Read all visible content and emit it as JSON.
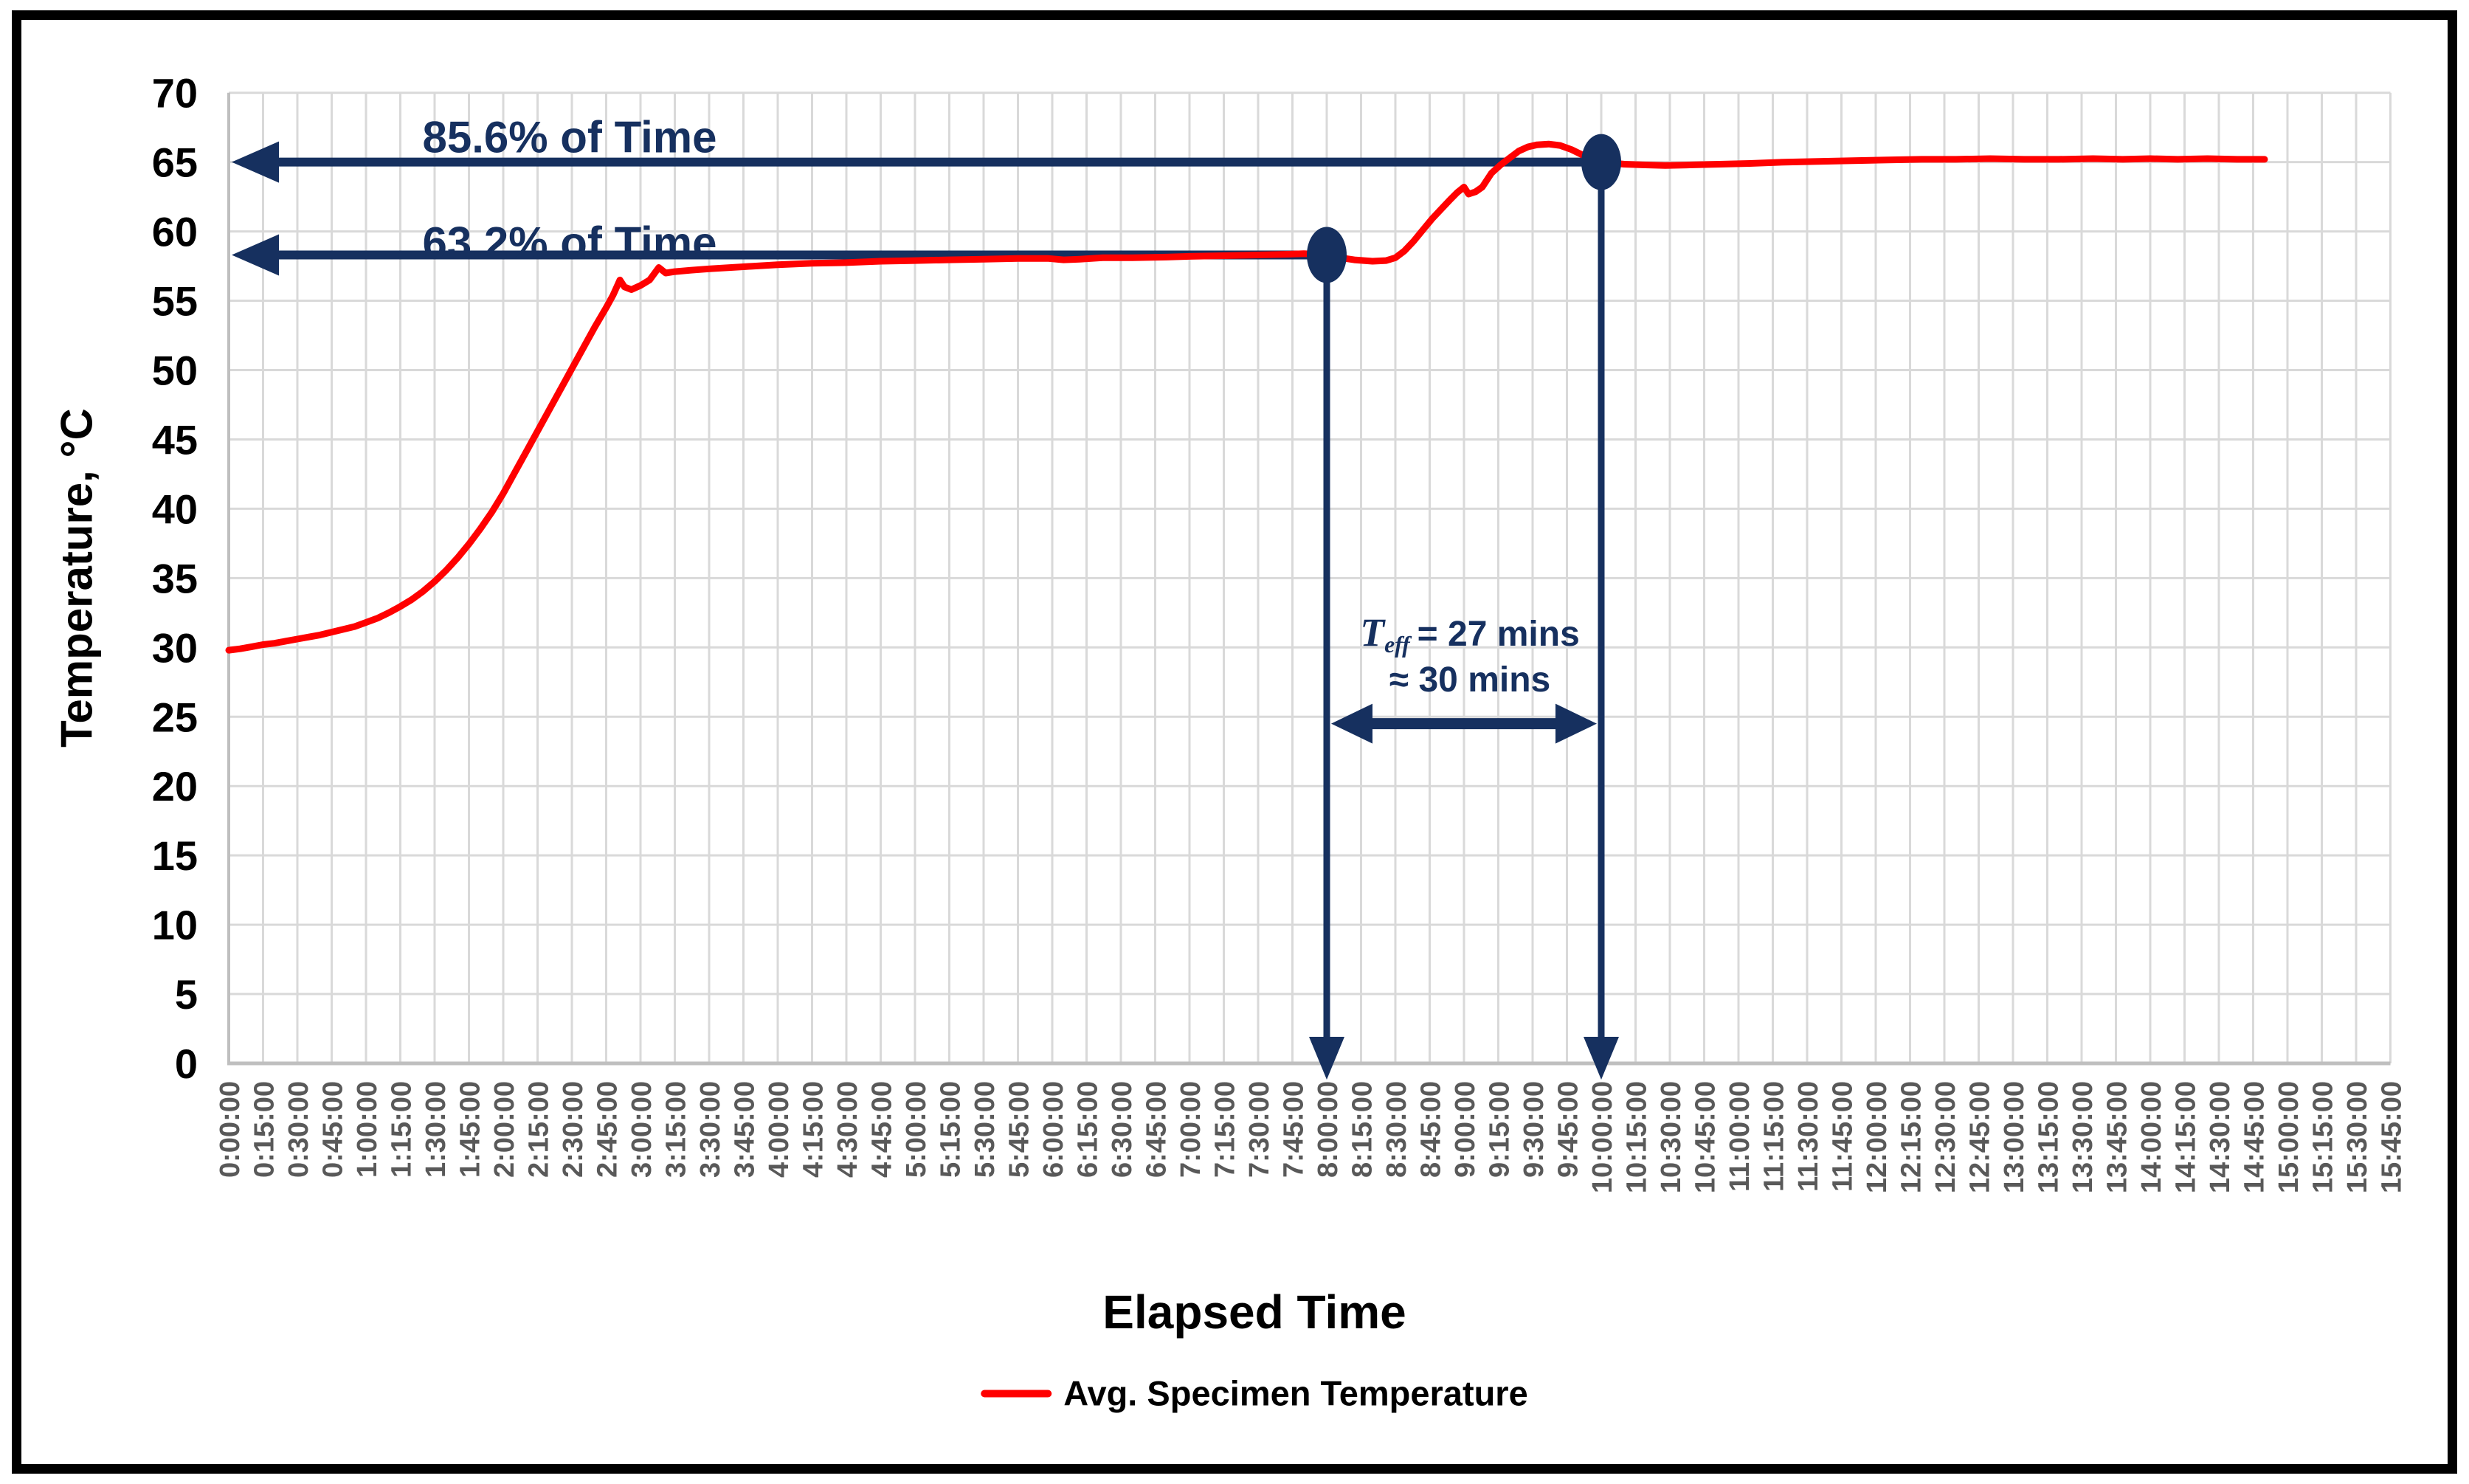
{
  "figure": {
    "background": "#FFFFFF",
    "border_color": "#000000"
  },
  "colors": {
    "series_red": "#FF0000",
    "annotation_navy": "#16305F",
    "gridline": "#D9D9D9",
    "axis_line": "#BFBFBF",
    "x_tick_text": "#595959",
    "y_tick_text": "#000000"
  },
  "chart_data": {
    "type": "line",
    "title": "",
    "xlabel": "Elapsed Time",
    "ylabel": "Temperature, °C",
    "ylim": [
      0,
      70
    ],
    "ytick_step": 5,
    "grid": "on",
    "legend_position": "bottom",
    "ytick_labels": [
      "0",
      "5",
      "10",
      "15",
      "20",
      "25",
      "30",
      "35",
      "40",
      "45",
      "50",
      "55",
      "60",
      "65",
      "70"
    ],
    "xtick_labels": [
      "0:00:00",
      "0:15:00",
      "0:30:00",
      "0:45:00",
      "1:00:00",
      "1:15:00",
      "1:30:00",
      "1:45:00",
      "2:00:00",
      "2:15:00",
      "2:30:00",
      "2:45:00",
      "3:00:00",
      "3:15:00",
      "3:30:00",
      "3:45:00",
      "4:00:00",
      "4:15:00",
      "4:30:00",
      "4:45:00",
      "5:00:00",
      "5:15:00",
      "5:30:00",
      "5:45:00",
      "6:00:00",
      "6:15:00",
      "6:30:00",
      "6:45:00",
      "7:00:00",
      "7:15:00",
      "7:30:00",
      "7:45:00",
      "8:00:00",
      "8:15:00",
      "8:30:00",
      "8:45:00",
      "9:00:00",
      "9:15:00",
      "9:30:00",
      "9:45:00",
      "10:00:00",
      "10:15:00",
      "10:30:00",
      "10:45:00",
      "11:00:00",
      "11:15:00",
      "11:30:00",
      "11:45:00",
      "12:00:00",
      "12:15:00",
      "12:30:00",
      "12:45:00",
      "13:00:00",
      "13:15:00",
      "13:30:00",
      "13:45:00",
      "14:00:00",
      "14:15:00",
      "14:30:00",
      "14:45:00",
      "15:00:00",
      "15:15:00",
      "15:30:00",
      "15:45:00"
    ],
    "minutes_per_tick": 15,
    "series": [
      {
        "name": "Avg. Specimen Temperature",
        "color": "#FF0000",
        "points": [
          [
            0,
            29.8
          ],
          [
            5,
            29.9
          ],
          [
            10,
            30.05
          ],
          [
            15,
            30.2
          ],
          [
            20,
            30.3
          ],
          [
            25,
            30.45
          ],
          [
            30,
            30.6
          ],
          [
            35,
            30.75
          ],
          [
            40,
            30.9
          ],
          [
            45,
            31.1
          ],
          [
            50,
            31.3
          ],
          [
            55,
            31.5
          ],
          [
            60,
            31.8
          ],
          [
            65,
            32.1
          ],
          [
            70,
            32.5
          ],
          [
            75,
            32.95
          ],
          [
            80,
            33.45
          ],
          [
            85,
            34.05
          ],
          [
            90,
            34.75
          ],
          [
            95,
            35.55
          ],
          [
            100,
            36.45
          ],
          [
            105,
            37.45
          ],
          [
            110,
            38.55
          ],
          [
            115,
            39.75
          ],
          [
            120,
            41.1
          ],
          [
            125,
            42.6
          ],
          [
            130,
            44.1
          ],
          [
            135,
            45.6
          ],
          [
            140,
            47.1
          ],
          [
            145,
            48.6
          ],
          [
            150,
            50.1
          ],
          [
            155,
            51.6
          ],
          [
            160,
            53.1
          ],
          [
            165,
            54.5
          ],
          [
            168,
            55.4
          ],
          [
            171,
            56.5
          ],
          [
            173,
            56.0
          ],
          [
            176,
            55.8
          ],
          [
            180,
            56.1
          ],
          [
            184,
            56.5
          ],
          [
            188,
            57.4
          ],
          [
            191,
            57.0
          ],
          [
            195,
            57.1
          ],
          [
            202,
            57.2
          ],
          [
            210,
            57.3
          ],
          [
            225,
            57.45
          ],
          [
            240,
            57.6
          ],
          [
            255,
            57.7
          ],
          [
            270,
            57.75
          ],
          [
            285,
            57.85
          ],
          [
            300,
            57.9
          ],
          [
            315,
            57.95
          ],
          [
            330,
            58.0
          ],
          [
            345,
            58.05
          ],
          [
            358,
            58.05
          ],
          [
            365,
            57.95
          ],
          [
            372,
            58.0
          ],
          [
            382,
            58.1
          ],
          [
            395,
            58.1
          ],
          [
            410,
            58.15
          ],
          [
            420,
            58.2
          ],
          [
            435,
            58.25
          ],
          [
            450,
            58.3
          ],
          [
            462,
            58.35
          ],
          [
            470,
            58.4
          ],
          [
            480,
            58.3
          ],
          [
            486,
            58.1
          ],
          [
            492,
            57.95
          ],
          [
            500,
            57.85
          ],
          [
            506,
            57.9
          ],
          [
            510,
            58.1
          ],
          [
            514,
            58.6
          ],
          [
            518,
            59.3
          ],
          [
            522,
            60.1
          ],
          [
            526,
            60.9
          ],
          [
            530,
            61.6
          ],
          [
            534,
            62.3
          ],
          [
            537,
            62.8
          ],
          [
            540,
            63.2
          ],
          [
            542,
            62.7
          ],
          [
            545,
            62.85
          ],
          [
            548,
            63.2
          ],
          [
            552,
            64.2
          ],
          [
            556,
            64.8
          ],
          [
            560,
            65.3
          ],
          [
            564,
            65.8
          ],
          [
            568,
            66.1
          ],
          [
            572,
            66.25
          ],
          [
            577,
            66.3
          ],
          [
            582,
            66.2
          ],
          [
            587,
            65.9
          ],
          [
            592,
            65.5
          ],
          [
            596,
            65.2
          ],
          [
            600,
            65.05
          ],
          [
            604,
            64.95
          ],
          [
            610,
            64.85
          ],
          [
            618,
            64.8
          ],
          [
            628,
            64.75
          ],
          [
            640,
            64.8
          ],
          [
            652,
            64.85
          ],
          [
            665,
            64.9
          ],
          [
            680,
            65.0
          ],
          [
            695,
            65.05
          ],
          [
            710,
            65.1
          ],
          [
            725,
            65.15
          ],
          [
            740,
            65.2
          ],
          [
            755,
            65.2
          ],
          [
            770,
            65.25
          ],
          [
            785,
            65.2
          ],
          [
            800,
            65.2
          ],
          [
            815,
            65.25
          ],
          [
            828,
            65.2
          ],
          [
            840,
            65.25
          ],
          [
            852,
            65.2
          ],
          [
            865,
            65.25
          ],
          [
            878,
            65.2
          ],
          [
            890,
            65.2
          ]
        ]
      }
    ]
  },
  "legend": {
    "entries": [
      {
        "label": "Avg. Specimen Temperature",
        "color": "#FF0000"
      }
    ]
  },
  "annotations": {
    "pct_85": {
      "text": "85.6% of Time",
      "temp_c": 65,
      "at_time": "10:00:00",
      "at_minutes": 600
    },
    "pct_63": {
      "text": "63.2% of Time",
      "temp_c": 58.3,
      "at_time": "8:00:00",
      "at_minutes": 480
    },
    "marker_1": {
      "time": "8:00:00",
      "minutes": 480,
      "temp_c": 58.3
    },
    "marker_2": {
      "time": "10:00:00",
      "minutes": 600,
      "temp_c": 65
    },
    "teff": {
      "symbol": "T",
      "subscript": "eff",
      "equals": "= 27 mins",
      "approx": "≈ 30 mins"
    },
    "span_arrow": {
      "from_minutes": 480,
      "to_minutes": 600
    }
  }
}
